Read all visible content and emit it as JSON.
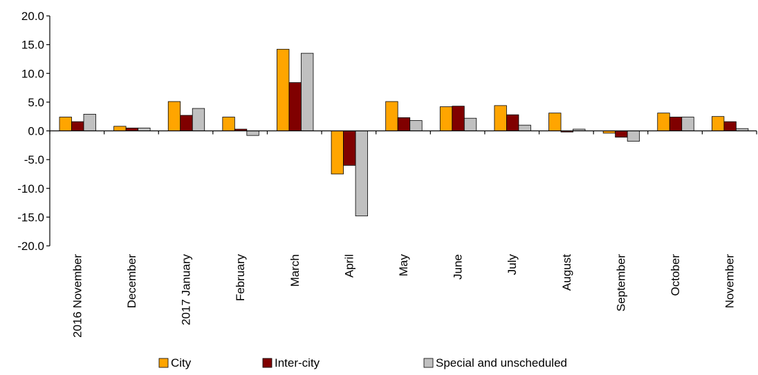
{
  "chart_data": {
    "type": "bar",
    "title": "",
    "xlabel": "",
    "ylabel": "",
    "categories": [
      "2016 November",
      "December",
      "2017 January",
      "February",
      "March",
      "April",
      "May",
      "June",
      "July",
      "August",
      "September",
      "October",
      "November"
    ],
    "series": [
      {
        "name": "City",
        "color": "#FFA500",
        "values": [
          2.4,
          0.8,
          5.1,
          2.4,
          14.2,
          -7.5,
          5.1,
          4.2,
          4.4,
          3.1,
          -0.4,
          3.1,
          2.5
        ]
      },
      {
        "name": "Inter-city",
        "color": "#800000",
        "values": [
          1.6,
          0.5,
          2.7,
          0.3,
          8.4,
          -6.0,
          2.3,
          4.3,
          2.8,
          -0.2,
          -1.1,
          2.4,
          1.6
        ]
      },
      {
        "name": "Special and unscheduled",
        "color": "#C0C0C0",
        "values": [
          2.9,
          0.5,
          3.9,
          -0.8,
          13.5,
          -14.8,
          1.8,
          2.2,
          1.0,
          0.3,
          -1.8,
          2.4,
          0.4
        ]
      }
    ],
    "ylim": [
      -20,
      20
    ],
    "yticks": [
      20,
      15,
      10,
      5,
      0,
      -5,
      -10,
      -15,
      -20
    ],
    "ytick_labels": [
      "20.0",
      "15.0",
      "10.0",
      "5.0",
      "0.0",
      "-5.0",
      "-10.0",
      "-15.0",
      "-20.0"
    ],
    "grid": false,
    "legend_position": "bottom"
  }
}
